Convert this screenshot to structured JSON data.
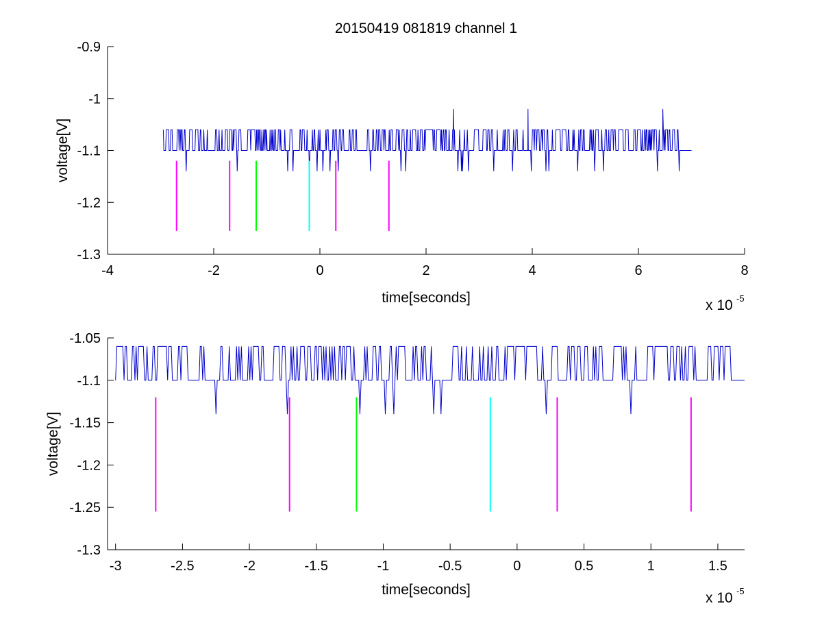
{
  "chart_data": [
    {
      "type": "line",
      "title": "20150419 081819 channel 1",
      "xlabel": "time[seconds]",
      "ylabel": "voltage[V]",
      "x_multiplier_base": "x 10",
      "x_multiplier_exp": "-5",
      "xlim": [
        -4,
        8
      ],
      "ylim": [
        -1.3,
        -0.9
      ],
      "xticks": [
        -4,
        -2,
        0,
        2,
        4,
        6,
        8
      ],
      "xtick_labels": [
        "-4",
        "-2",
        "0",
        "2",
        "4",
        "6",
        "8"
      ],
      "yticks": [
        -1.3,
        -1.2,
        -1.1,
        -1.0,
        -0.9
      ],
      "ytick_labels": [
        "-1.3",
        "-1.2",
        "-1.1",
        "-1",
        "-0.9"
      ],
      "grid": false,
      "signal": {
        "color": "#0000cc",
        "x_range": [
          -2.95,
          7.0
        ],
        "baseline": -1.1,
        "high_level": -1.06,
        "dip_level": -1.14,
        "spike_level": -1.02,
        "spikes_x": [
          2.52,
          3.92,
          6.46
        ]
      },
      "markers": [
        {
          "x": -2.7,
          "y_top": -1.12,
          "y_bottom": -1.255,
          "color": "#ff00ff"
        },
        {
          "x": -1.7,
          "y_top": -1.12,
          "y_bottom": -1.255,
          "color": "#ff00ff"
        },
        {
          "x": -1.2,
          "y_top": -1.12,
          "y_bottom": -1.255,
          "color": "#00ff00"
        },
        {
          "x": -0.2,
          "y_top": -1.12,
          "y_bottom": -1.255,
          "color": "#00ffff"
        },
        {
          "x": 0.3,
          "y_top": -1.12,
          "y_bottom": -1.255,
          "color": "#ff00ff"
        },
        {
          "x": 1.3,
          "y_top": -1.12,
          "y_bottom": -1.255,
          "color": "#ff00ff"
        }
      ]
    },
    {
      "type": "line",
      "title": "",
      "xlabel": "time[seconds]",
      "ylabel": "voltage[V]",
      "x_multiplier_base": "x 10",
      "x_multiplier_exp": "-5",
      "xlim": [
        -3.06,
        1.7
      ],
      "ylim": [
        -1.3,
        -1.05
      ],
      "xticks": [
        -3,
        -2.5,
        -2,
        -1.5,
        -1,
        -0.5,
        0,
        0.5,
        1,
        1.5
      ],
      "xtick_labels": [
        "-3",
        "-2.5",
        "-2",
        "-1.5",
        "-1",
        "-0.5",
        "0",
        "0.5",
        "1",
        "1.5"
      ],
      "yticks": [
        -1.3,
        -1.25,
        -1.2,
        -1.15,
        -1.1,
        -1.05
      ],
      "ytick_labels": [
        "-1.3",
        "-1.25",
        "-1.2",
        "-1.15",
        "-1.1",
        "-1.05"
      ],
      "grid": false,
      "signal": {
        "color": "#0000cc",
        "x_range": [
          -3.0,
          1.7
        ],
        "baseline": -1.1,
        "high_level": -1.06,
        "dip_level": -1.14,
        "spike_level": -1.06,
        "spikes_x": []
      },
      "markers": [
        {
          "x": -2.7,
          "y_top": -1.12,
          "y_bottom": -1.255,
          "color": "#ff00ff"
        },
        {
          "x": -1.7,
          "y_top": -1.12,
          "y_bottom": -1.255,
          "color": "#ff00ff"
        },
        {
          "x": -1.2,
          "y_top": -1.12,
          "y_bottom": -1.255,
          "color": "#00ff00"
        },
        {
          "x": -0.2,
          "y_top": -1.12,
          "y_bottom": -1.255,
          "color": "#00ffff"
        },
        {
          "x": 0.3,
          "y_top": -1.12,
          "y_bottom": -1.255,
          "color": "#ff00ff"
        },
        {
          "x": 1.3,
          "y_top": -1.12,
          "y_bottom": -1.255,
          "color": "#ff00ff"
        }
      ]
    }
  ]
}
